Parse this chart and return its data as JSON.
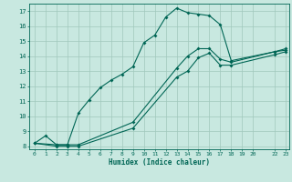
{
  "title": "",
  "xlabel": "Humidex (Indice chaleur)",
  "bg_color": "#c8e8e0",
  "grid_color": "#a0c8bc",
  "line_color": "#006655",
  "xlim": [
    -0.5,
    23.3
  ],
  "ylim": [
    7.8,
    17.5
  ],
  "xticks": [
    0,
    1,
    2,
    3,
    4,
    5,
    6,
    7,
    8,
    9,
    10,
    11,
    12,
    13,
    14,
    15,
    16,
    17,
    18,
    19,
    20,
    22,
    23
  ],
  "yticks": [
    8,
    9,
    10,
    11,
    12,
    13,
    14,
    15,
    16,
    17
  ],
  "curve1_x": [
    0,
    1,
    2,
    3,
    4,
    5,
    6,
    7,
    8,
    9,
    10,
    11,
    12,
    13,
    14,
    15,
    16,
    17,
    18,
    22,
    23
  ],
  "curve1_y": [
    8.2,
    8.7,
    8.1,
    8.1,
    10.2,
    11.1,
    11.9,
    12.4,
    12.8,
    13.3,
    14.9,
    15.4,
    16.6,
    17.2,
    16.9,
    16.8,
    16.7,
    16.1,
    13.7,
    14.3,
    14.4
  ],
  "curve2_x": [
    0,
    2,
    3,
    4,
    9,
    13,
    14,
    15,
    16,
    17,
    18,
    22,
    23
  ],
  "curve2_y": [
    8.2,
    8.1,
    8.1,
    8.1,
    9.6,
    13.2,
    14.0,
    14.5,
    14.5,
    13.8,
    13.6,
    14.3,
    14.5
  ],
  "curve3_x": [
    0,
    2,
    3,
    4,
    9,
    13,
    14,
    15,
    16,
    17,
    18,
    22,
    23
  ],
  "curve3_y": [
    8.2,
    8.0,
    8.0,
    8.0,
    9.2,
    12.6,
    13.0,
    13.9,
    14.2,
    13.4,
    13.4,
    14.1,
    14.3
  ]
}
